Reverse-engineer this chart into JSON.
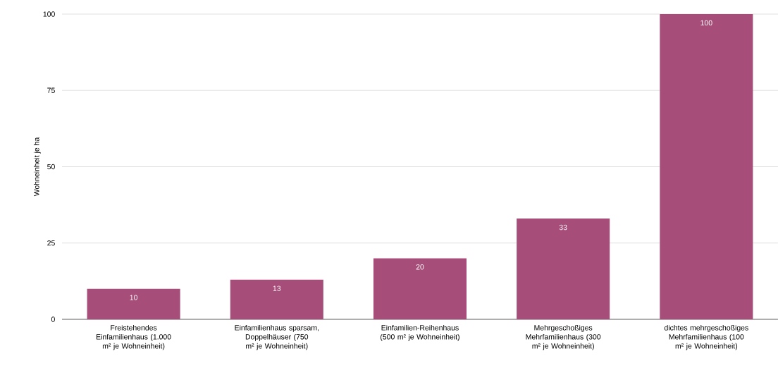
{
  "chart_data": {
    "type": "bar",
    "ylabel": "Wohneinheit je ha",
    "categories": [
      "Freistehendes Einfamilienhaus (1.000 m² je Wohneinheit)",
      "Einfamilienhaus sparsam, Doppelhäuser (750 m² je Wohneinheit)",
      "Einfamilien-Reihenhaus (500 m² je Wohneinheit)",
      "Mehrgeschoßiges Mehrfamilienhaus (300 m² je Wohneinheit)",
      "dichtes mehrgeschoßiges Mehrfamilienhaus (100 m² je Wohneinheit)"
    ],
    "values": [
      10,
      13,
      20,
      33,
      100
    ],
    "color": "#a64d79",
    "ylim": [
      0,
      100
    ],
    "yticks": [
      0,
      25,
      50,
      75,
      100
    ],
    "grid": "y",
    "data_labels": true
  }
}
